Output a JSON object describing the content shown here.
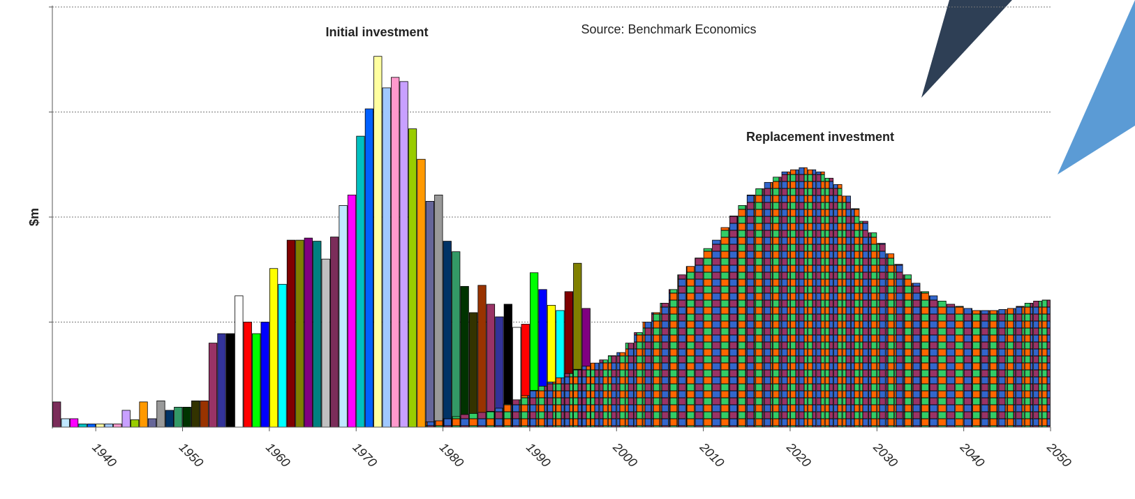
{
  "chart_data": {
    "type": "bar",
    "annotation": "Source: Benchmark Economics",
    "y_label": "$m",
    "xlim": [
      1935,
      2050
    ],
    "xticks": [
      1940,
      1950,
      1960,
      1970,
      1980,
      1990,
      2000,
      2010,
      2020,
      2030,
      2040,
      2050
    ],
    "ylim": [
      0,
      4
    ],
    "grid_values": [
      1,
      2,
      3,
      4
    ],
    "grid": true,
    "palette": [
      "#7b2d5a",
      "#c0e8ff",
      "#ff00ff",
      "#00c0c0",
      "#0060ff",
      "#ffffa0",
      "#a0c8ff",
      "#ff99cc",
      "#c8a0ff",
      "#99cc00",
      "#ff9900",
      "#666699",
      "#999999",
      "#003366",
      "#339966",
      "#003300",
      "#333300",
      "#993300",
      "#993366",
      "#333399",
      "#000000",
      "#ffffff",
      "#ff0000",
      "#00ff00",
      "#0000ff",
      "#ffff00",
      "#00ffff",
      "#800000",
      "#808000",
      "#800080",
      "#008080",
      "#c0c0c0"
    ],
    "series": [
      {
        "name": "Initial investment",
        "x": [
          1935,
          1936,
          1937,
          1938,
          1939,
          1940,
          1941,
          1942,
          1943,
          1944,
          1945,
          1946,
          1947,
          1948,
          1949,
          1950,
          1951,
          1952,
          1953,
          1954,
          1955,
          1956,
          1957,
          1958,
          1959,
          1960,
          1961,
          1962,
          1963,
          1964,
          1965,
          1966,
          1967,
          1968,
          1969,
          1970,
          1971,
          1972,
          1973,
          1974,
          1975,
          1976,
          1977,
          1978,
          1979,
          1980,
          1981,
          1982,
          1983,
          1984,
          1985,
          1986,
          1987,
          1988,
          1989,
          1990,
          1991,
          1992,
          1993,
          1994,
          1995,
          1996
        ],
        "values": [
          0.24,
          0.08,
          0.08,
          0.03,
          0.03,
          0.03,
          0.03,
          0.03,
          0.16,
          0.07,
          0.24,
          0.08,
          0.25,
          0.16,
          0.19,
          0.19,
          0.25,
          0.25,
          0.8,
          0.89,
          0.89,
          1.25,
          1.0,
          0.89,
          1.0,
          1.51,
          1.36,
          1.78,
          1.78,
          1.8,
          1.77,
          1.6,
          1.81,
          2.11,
          2.21,
          2.77,
          3.03,
          3.53,
          3.23,
          3.33,
          3.29,
          2.84,
          2.55,
          2.15,
          2.21,
          1.77,
          1.67,
          1.34,
          1.09,
          1.35,
          1.17,
          1.05,
          1.17,
          0.95,
          0.98,
          1.47,
          1.31,
          1.16,
          1.11,
          1.29,
          1.56,
          1.13
        ]
      },
      {
        "name": "Replacement investment",
        "x": [
          1978,
          1979,
          1980,
          1981,
          1982,
          1983,
          1984,
          1985,
          1986,
          1987,
          1988,
          1989,
          1990,
          1991,
          1992,
          1993,
          1994,
          1995,
          1996,
          1997,
          1998,
          1999,
          2000,
          2001,
          2002,
          2003,
          2004,
          2005,
          2006,
          2007,
          2008,
          2009,
          2010,
          2011,
          2012,
          2013,
          2014,
          2015,
          2016,
          2017,
          2018,
          2019,
          2020,
          2021,
          2022,
          2023,
          2024,
          2025,
          2026,
          2027,
          2028,
          2029,
          2030,
          2031,
          2032,
          2033,
          2034,
          2035,
          2036,
          2037,
          2038,
          2039,
          2040,
          2041,
          2042,
          2043,
          2044,
          2045,
          2046,
          2047,
          2048,
          2049
        ],
        "values": [
          0.05,
          0.06,
          0.08,
          0.1,
          0.12,
          0.13,
          0.14,
          0.15,
          0.18,
          0.22,
          0.26,
          0.3,
          0.35,
          0.39,
          0.43,
          0.47,
          0.51,
          0.55,
          0.58,
          0.61,
          0.64,
          0.68,
          0.71,
          0.8,
          0.9,
          1.0,
          1.09,
          1.18,
          1.31,
          1.45,
          1.53,
          1.61,
          1.7,
          1.78,
          1.9,
          2.01,
          2.11,
          2.21,
          2.27,
          2.33,
          2.38,
          2.43,
          2.45,
          2.47,
          2.45,
          2.43,
          2.37,
          2.31,
          2.2,
          2.08,
          1.96,
          1.85,
          1.75,
          1.65,
          1.55,
          1.45,
          1.37,
          1.29,
          1.25,
          1.2,
          1.17,
          1.15,
          1.13,
          1.11,
          1.11,
          1.11,
          1.12,
          1.13,
          1.15,
          1.18,
          1.2,
          1.21
        ]
      }
    ]
  }
}
